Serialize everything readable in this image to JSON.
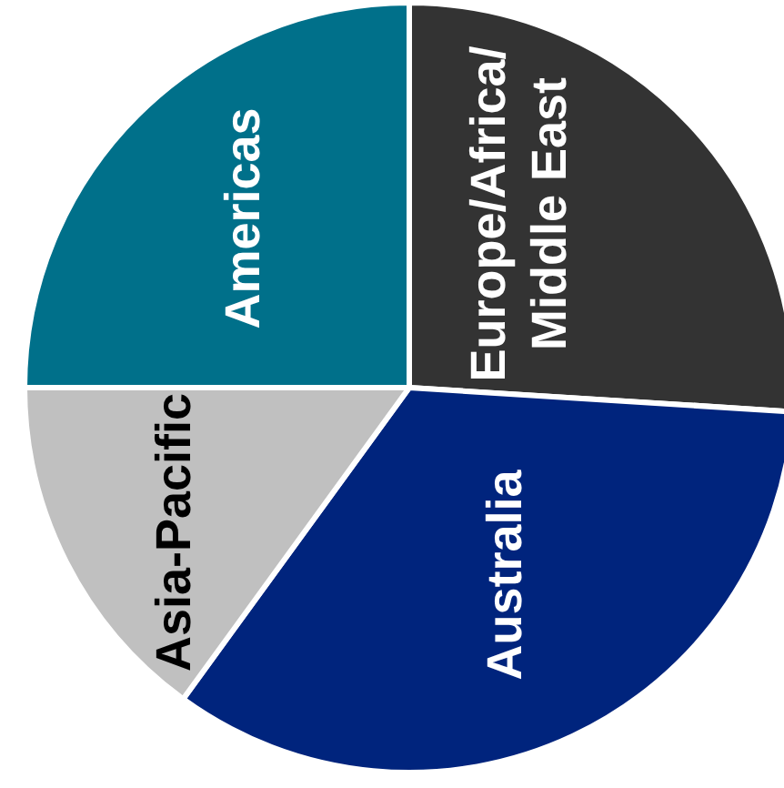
{
  "chart_data": {
    "type": "pie",
    "categories": [
      "Europe/Africa/ Middle East",
      "Australia",
      "Asia-Pacific",
      "Americas"
    ],
    "values": [
      26,
      34,
      15,
      25
    ],
    "colors": [
      "#333333",
      "#00247d",
      "#c0c0c0",
      "#00708a"
    ]
  }
}
